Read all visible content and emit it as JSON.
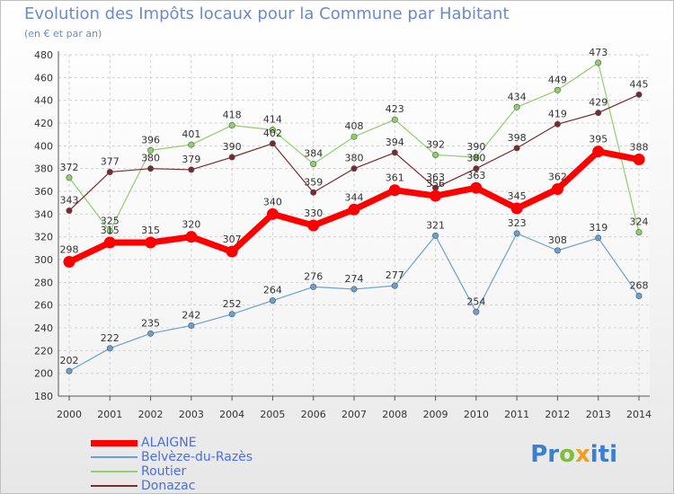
{
  "header": {
    "title": "Evolution des Impôts locaux pour la Commune par Habitant",
    "subtitle": "(en € et par an)"
  },
  "brand": {
    "text": "Proxiti"
  },
  "chart_data": {
    "type": "line",
    "x": [
      2000,
      2001,
      2002,
      2003,
      2004,
      2005,
      2006,
      2007,
      2008,
      2009,
      2010,
      2011,
      2012,
      2013,
      2014
    ],
    "ylim": [
      180,
      480
    ],
    "yticks": [
      180,
      200,
      220,
      240,
      260,
      280,
      300,
      320,
      340,
      360,
      380,
      400,
      420,
      440,
      460,
      480
    ],
    "grid": true,
    "legend_position": "bottom-left",
    "series": [
      {
        "name": "ALAIGNE",
        "color": "#ff0000",
        "emphasis": true,
        "values": [
          298,
          315,
          315,
          320,
          307,
          340,
          330,
          344,
          361,
          356,
          363,
          345,
          362,
          395,
          388
        ]
      },
      {
        "name": "Belvèze-du-Razès",
        "color": "#6aa0d0",
        "values": [
          202,
          222,
          235,
          242,
          252,
          264,
          276,
          274,
          277,
          321,
          254,
          323,
          308,
          319,
          268
        ]
      },
      {
        "name": "Routier",
        "color": "#8ed06a",
        "values": [
          372,
          325,
          396,
          401,
          418,
          414,
          384,
          408,
          423,
          392,
          390,
          434,
          449,
          473,
          324
        ]
      },
      {
        "name": "Donazac",
        "color": "#7a2a2a",
        "values": [
          343,
          377,
          380,
          379,
          390,
          402,
          359,
          380,
          394,
          363,
          380,
          398,
          419,
          429,
          445
        ]
      }
    ]
  }
}
